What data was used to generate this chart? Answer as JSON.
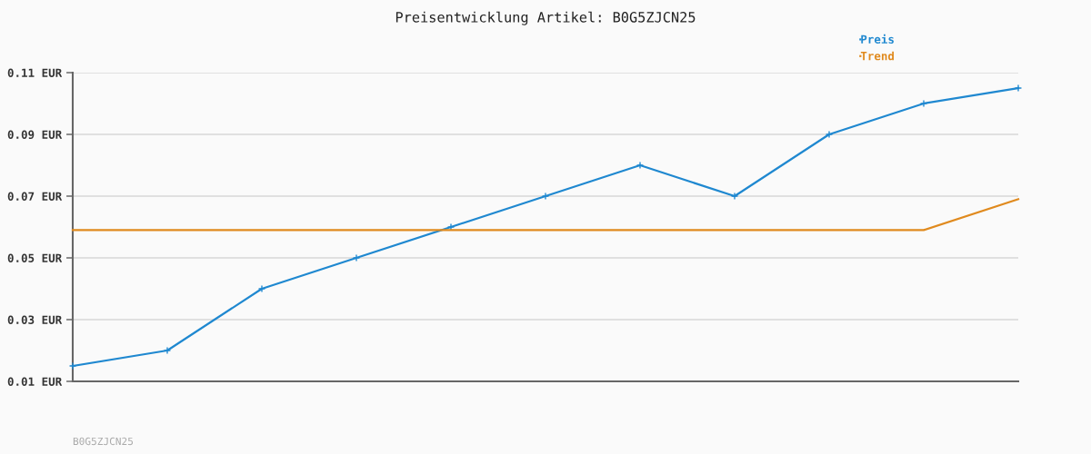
{
  "chart_data": {
    "type": "line",
    "title": "Preisentwicklung Artikel: B0G5ZJCN25",
    "categories": [
      null,
      null,
      null,
      null,
      null,
      null,
      null,
      null,
      null,
      null,
      null
    ],
    "series": [
      {
        "name": "Preis",
        "color": "#1f88d0",
        "marker": "cross",
        "values": [
          0.015,
          0.02,
          0.04,
          0.05,
          0.06,
          0.07,
          0.08,
          0.07,
          0.09,
          0.1,
          0.105
        ]
      },
      {
        "name": "Trend",
        "color": "#e08a1e",
        "marker": "none",
        "values": [
          0.059,
          0.059,
          0.059,
          0.059,
          0.059,
          0.059,
          0.059,
          0.059,
          0.059,
          0.059,
          0.069
        ]
      }
    ],
    "ylim": [
      0.01,
      0.11
    ],
    "yticks": [
      {
        "value": 0.01,
        "label": "0.01 EUR"
      },
      {
        "value": 0.03,
        "label": "0.03 EUR"
      },
      {
        "value": 0.05,
        "label": "0.05 EUR"
      },
      {
        "value": 0.07,
        "label": "0.07 EUR"
      },
      {
        "value": 0.09,
        "label": "0.09 EUR"
      },
      {
        "value": 0.11,
        "label": "0.11 EUR"
      }
    ],
    "grid": "y",
    "legend": "top right",
    "line_style": "solid",
    "annotations": [
      "B0G5ZJCN25"
    ]
  }
}
